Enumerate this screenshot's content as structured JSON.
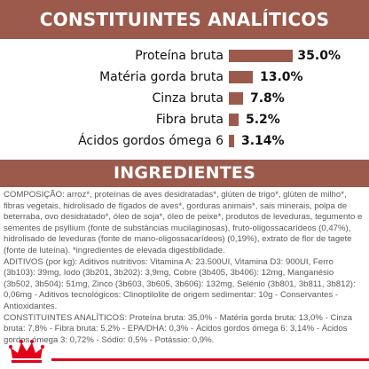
{
  "analytics": {
    "title": "CONSTITUINTES ANALÍTICOS",
    "items": [
      {
        "label": "Proteína bruta",
        "value": 35.0,
        "value_text": "35.0%"
      },
      {
        "label": "Matéria gorda bruta",
        "value": 13.0,
        "value_text": "13.0%"
      },
      {
        "label": "Cinza bruta",
        "value": 7.8,
        "value_text": "7.8%"
      },
      {
        "label": "Fibra bruta",
        "value": 5.2,
        "value_text": "5.2%"
      },
      {
        "label": "Ácidos gordos ómega 6",
        "value": 3.14,
        "value_text": "3.14%"
      }
    ]
  },
  "ingredients": {
    "title": "INGREDIENTES",
    "composition": "COMPOSIÇÃO: arroz*, proteínas de aves desidratadas*, glúten de trigo*, glúten de milho*, fibras vegetais, hidrolisado de fígados de aves*, gorduras animais*, sais minerais, polpa de beterraba, ovo desidratado*, óleo de soja*, óleo de peixe*, produtos de leveduras, tegumento e sementes de psyllium (fonte de substâncias mucilaginosas), fruto-oligossacarídeos (0,47%), hidrolisado de leveduras (fonte de mano-oligossacarídeos) (0,19%), extrato de flor de tagete (fonte de luteína). *ingredientes de elevada digestibilidade.",
    "additives": "ADITIVOS (por kg): Aditivos nutritivos: Vitamina A: 23.500UI, Vitamina D3: 900UI, Ferro (3b103): 39mg, Iodo (3b201, 3b202): 3,9mg, Cobre (3b405, 3b406): 12mg, Manganésio (3b502, 3b504): 51mg, Zinco (3b603, 3b605, 3b606): 132mg, Selénio (3b801, 3b811, 3b812): 0,06mg - Aditivos tecnológicos: Clinoptilolite de origem sedimentar: 10g - Conservantes - Antioxidantes.",
    "constituents": "CONSTITUINTES ANALÍTICOS: Proteína bruta: 35,0% - Matéria gorda bruta: 13,0% - Cinza bruta: 7,8% - Fibra bruta: 5,2% - EPA/DHA: 0,3% - Ácidos gordos ómega 6: 3,14% - Ácidos gordos ómega 3: 0,72% - Sódio: 0,5% - Potássio: 0,9%."
  },
  "colors": {
    "accent": "#9b5a4b",
    "brand_red": "#e2001a"
  },
  "logo_icon": "royal-canin-crown-icon"
}
